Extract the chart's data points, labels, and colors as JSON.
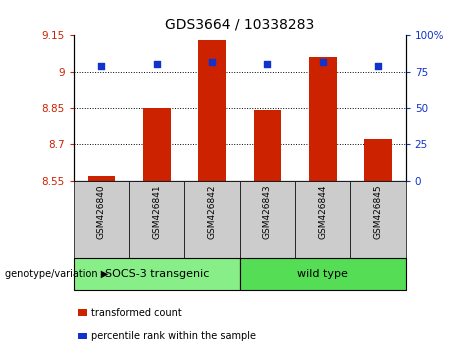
{
  "title": "GDS3664 / 10338283",
  "samples": [
    "GSM426840",
    "GSM426841",
    "GSM426842",
    "GSM426843",
    "GSM426844",
    "GSM426845"
  ],
  "bar_values": [
    8.57,
    8.85,
    9.13,
    8.84,
    9.06,
    8.72
  ],
  "percentile_values": [
    79,
    80,
    82,
    80,
    82,
    79
  ],
  "bar_bottom": 8.55,
  "ylim_left": [
    8.55,
    9.15
  ],
  "ylim_right": [
    0,
    100
  ],
  "yticks_left": [
    8.55,
    8.7,
    8.85,
    9.0,
    9.15
  ],
  "ytick_labels_left": [
    "8.55",
    "8.7",
    "8.85",
    "9",
    "9.15"
  ],
  "yticks_right": [
    0,
    25,
    50,
    75,
    100
  ],
  "ytick_labels_right": [
    "0",
    "25",
    "50",
    "75",
    "100%"
  ],
  "hlines": [
    9.0,
    8.85,
    8.7
  ],
  "bar_color": "#cc2200",
  "dot_color": "#1133cc",
  "left_tick_color": "#cc2200",
  "right_tick_color": "#1133cc",
  "groups": [
    {
      "label": "SOCS-3 transgenic",
      "indices": [
        0,
        1,
        2
      ],
      "color": "#88ee88"
    },
    {
      "label": "wild type",
      "indices": [
        3,
        4,
        5
      ],
      "color": "#55dd55"
    }
  ],
  "group_label_text": "genotype/variation",
  "legend_items": [
    {
      "color": "#cc2200",
      "label": "transformed count"
    },
    {
      "color": "#1133cc",
      "label": "percentile rank within the sample"
    }
  ],
  "xlabel_area_color": "#cccccc",
  "bar_width": 0.5,
  "figsize": [
    4.61,
    3.54
  ],
  "dpi": 100
}
